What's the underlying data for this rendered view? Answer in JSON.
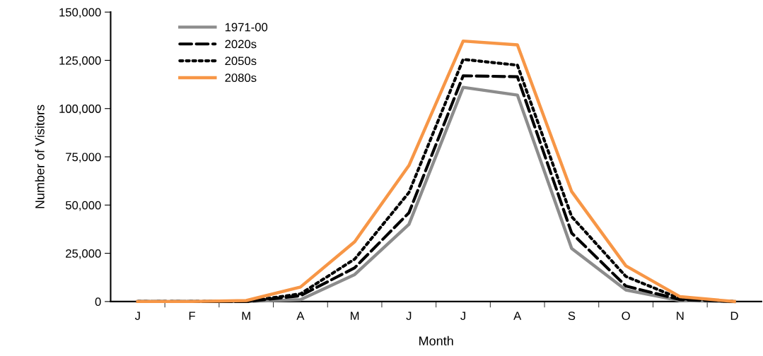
{
  "chart_data": {
    "type": "line",
    "xlabel": "Month",
    "ylabel": "Number of Visitors",
    "categories": [
      "J",
      "F",
      "M",
      "A",
      "M",
      "J",
      "J",
      "A",
      "S",
      "O",
      "N",
      "D"
    ],
    "series": [
      {
        "name": "1971-00",
        "color": "#8c8c8c",
        "line_style": "solid",
        "values": [
          0,
          0,
          0,
          1000,
          14000,
          40000,
          111000,
          107000,
          27500,
          6000,
          500,
          0
        ]
      },
      {
        "name": "2020s",
        "color": "#000000",
        "line_style": "dashed",
        "values": [
          0,
          0,
          0,
          3000,
          17500,
          46000,
          117000,
          116500,
          35500,
          8000,
          1000,
          0
        ]
      },
      {
        "name": "2050s",
        "color": "#000000",
        "line_style": "dotted",
        "values": [
          0,
          0,
          0,
          4000,
          22000,
          56500,
          125500,
          122500,
          44000,
          13000,
          1500,
          0
        ]
      },
      {
        "name": "2080s",
        "color": "#f79646",
        "line_style": "solid",
        "values": [
          0,
          0,
          500,
          7500,
          31000,
          70500,
          135000,
          133000,
          57000,
          18500,
          2500,
          0
        ]
      }
    ],
    "ylim": [
      0,
      150000
    ],
    "yticks": [
      {
        "value": 0,
        "label": "0"
      },
      {
        "value": 25000,
        "label": "25,000"
      },
      {
        "value": 50000,
        "label": "50,000"
      },
      {
        "value": 75000,
        "label": "75,000"
      },
      {
        "value": 100000,
        "label": "100,000"
      },
      {
        "value": 125000,
        "label": "125,000"
      },
      {
        "value": 150000,
        "label": "150,000"
      }
    ],
    "grid": false,
    "legend": "top left",
    "marker": "none"
  }
}
